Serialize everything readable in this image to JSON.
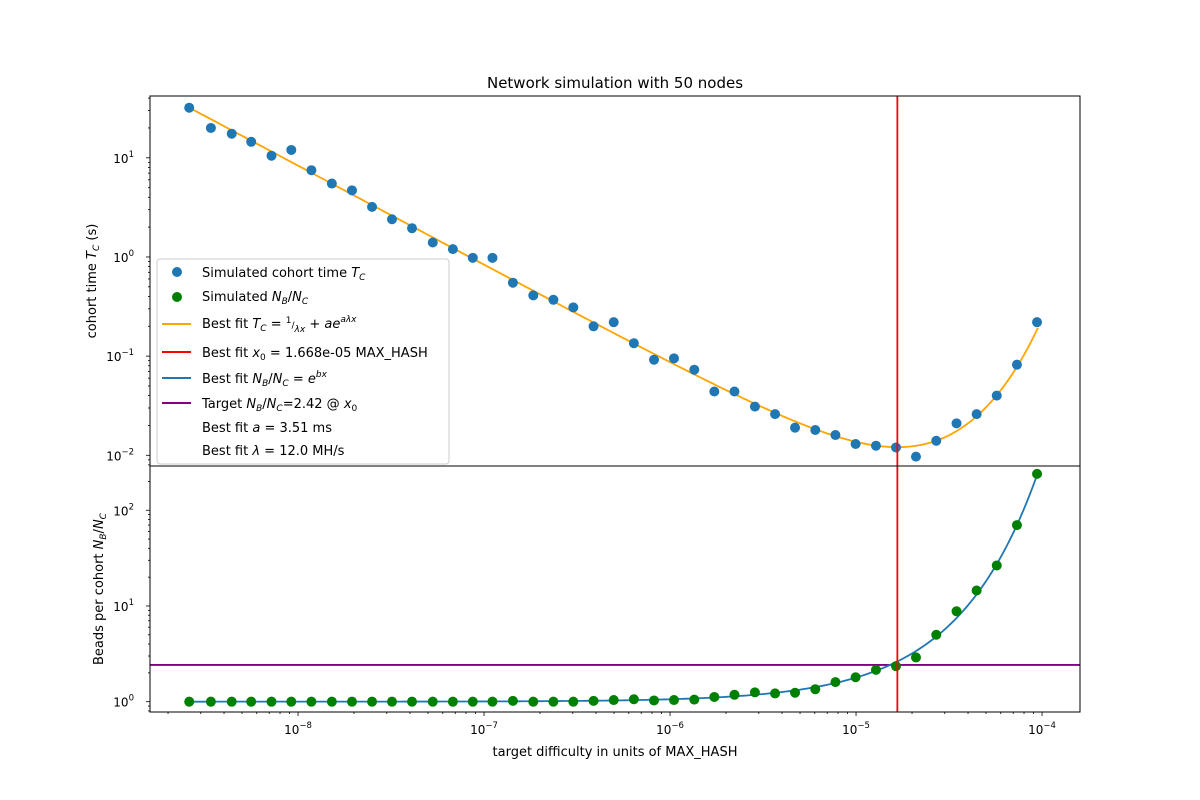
{
  "chart_data": {
    "type": "scatter",
    "title": "Network simulation with 50 nodes",
    "xlabel": "target difficulty in units of MAX_HASH",
    "x_scale": "log",
    "xlim": [
      1.6e-09,
      0.00016
    ],
    "x_ticks": [
      {
        "value": 1e-08,
        "base": "10",
        "exp": "−8"
      },
      {
        "value": 1e-07,
        "base": "10",
        "exp": "−7"
      },
      {
        "value": 1e-06,
        "base": "10",
        "exp": "−6"
      },
      {
        "value": 1e-05,
        "base": "10",
        "exp": "−5"
      },
      {
        "value": 0.0001,
        "base": "10",
        "exp": "−4"
      }
    ],
    "x": [
      2.6e-09,
      3.4e-09,
      4.4e-09,
      5.6e-09,
      7.2e-09,
      9.2e-09,
      1.18e-08,
      1.52e-08,
      1.95e-08,
      2.5e-08,
      3.2e-08,
      4.1e-08,
      5.3e-08,
      6.8e-08,
      8.7e-08,
      1.11e-07,
      1.43e-07,
      1.84e-07,
      2.36e-07,
      3.02e-07,
      3.88e-07,
      4.98e-07,
      6.39e-07,
      8.2e-07,
      1.05e-06,
      1.35e-06,
      1.73e-06,
      2.22e-06,
      2.86e-06,
      3.67e-06,
      4.7e-06,
      6.04e-06,
      7.75e-06,
      9.95e-06,
      1.28e-05,
      1.64e-05,
      2.1e-05,
      2.7e-05,
      3.47e-05,
      4.45e-05,
      5.71e-05,
      7.33e-05,
      9.4e-05
    ],
    "top": {
      "ylabel": "cohort time T_C (s)",
      "y_scale": "log",
      "ylim": [
        0.0078,
        42
      ],
      "y_ticks": [
        {
          "value": 0.01,
          "base": "10",
          "exp": "−2"
        },
        {
          "value": 0.1,
          "base": "10",
          "exp": "−1"
        },
        {
          "value": 1,
          "base": "10",
          "exp": "0"
        },
        {
          "value": 10,
          "base": "10",
          "exp": "1"
        }
      ],
      "series": [
        {
          "name": "Simulated cohort time T_C",
          "kind": "scatter",
          "color": "#1f77b4",
          "values": [
            32,
            20,
            17.5,
            14.5,
            10.5,
            12,
            7.5,
            5.5,
            4.7,
            3.2,
            2.4,
            1.95,
            1.4,
            1.2,
            0.98,
            0.98,
            0.55,
            0.41,
            0.37,
            0.31,
            0.2,
            0.22,
            0.135,
            0.092,
            0.095,
            0.073,
            0.044,
            0.044,
            0.031,
            0.026,
            0.019,
            0.018,
            0.016,
            0.013,
            0.0125,
            0.012,
            0.0097,
            0.014,
            0.021,
            0.026,
            0.04,
            0.082,
            0.22
          ]
        },
        {
          "name": "Best fit T_C = 1/(λx) + a e^{aλx}",
          "kind": "fit-line",
          "color": "#ffa500",
          "params": {
            "a": 0.00351,
            "lambda_hps": 12000000.0
          },
          "x_range": [
            2.6e-09,
            9.5e-05
          ]
        }
      ]
    },
    "bottom": {
      "ylabel": "Beads per cohort N_B/N_C",
      "y_scale": "log",
      "ylim": [
        0.78,
        290
      ],
      "y_ticks": [
        {
          "value": 1,
          "base": "10",
          "exp": "0"
        },
        {
          "value": 10,
          "base": "10",
          "exp": "1"
        },
        {
          "value": 100,
          "base": "10",
          "exp": "2"
        }
      ],
      "series": [
        {
          "name": "Simulated N_B/N_C",
          "kind": "scatter",
          "color": "#008000",
          "values": [
            1.0,
            1.0,
            1.0,
            1.0,
            1.0,
            1.0,
            1.0,
            1.0,
            1.0,
            1.0,
            1.0,
            1.0,
            1.0,
            1.0,
            1.0,
            1.0,
            1.02,
            1.0,
            1.0,
            1.0,
            1.02,
            1.04,
            1.06,
            1.03,
            1.04,
            1.05,
            1.12,
            1.18,
            1.25,
            1.22,
            1.24,
            1.35,
            1.6,
            1.8,
            2.15,
            2.35,
            2.9,
            5.0,
            8.8,
            14.5,
            26.5,
            70,
            240
          ]
        },
        {
          "name": "Best fit N_B/N_C = e^{bx}",
          "kind": "fit-line",
          "color": "#1f77b4",
          "params": {
            "b": 58000
          },
          "x_range": [
            2.6e-09,
            9.5e-05
          ]
        },
        {
          "name": "Target N_B/N_C=2.42 @ x_0",
          "kind": "hline",
          "color": "#800080",
          "value": 2.42
        }
      ]
    },
    "vline": {
      "name": "Best fit x_0 = 1.668e-05 MAX_HASH",
      "value": 1.668e-05,
      "color": "#ff0000"
    },
    "legend_placement": "center-left of upper panel"
  },
  "legend": {
    "sim_tc_prefix": "Simulated cohort time ",
    "sim_nb_prefix": "Simulated ",
    "fit_tc_prefix": "Best fit ",
    "x0_prefix": "Best fit ",
    "x0_value": " = 1.668e-05 MAX_HASH",
    "fit_nb_prefix": "Best fit ",
    "target_prefix": "Target ",
    "target_value": "=2.42 @ ",
    "a_prefix": "Best fit ",
    "a_value": "  = 3.51 ms",
    "lambda_prefix": "Best fit ",
    "lambda_value": "  = 12.0 MH/s"
  },
  "labels": {
    "top_ylabel_prefix": "cohort time ",
    "top_ylabel_suffix": " (s)",
    "bottom_ylabel_prefix": "Beads per cohort "
  }
}
